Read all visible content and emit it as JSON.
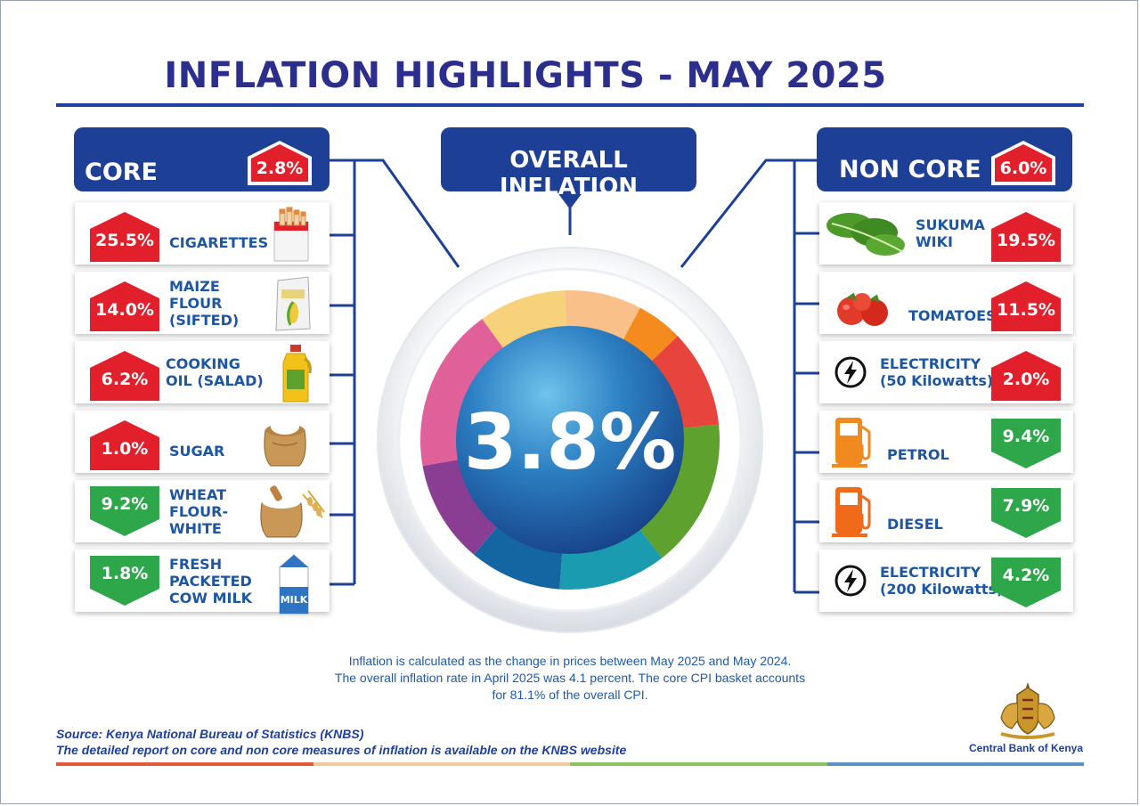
{
  "title": "INFLATION HIGHLIGHTS - MAY 2025",
  "core": {
    "label": "CORE",
    "value": "2.8%",
    "direction": "up",
    "items": [
      {
        "value": "25.5%",
        "direction": "up",
        "label": "CIGARETTES",
        "icon": "cigarettes-icon"
      },
      {
        "value": "14.0%",
        "direction": "up",
        "label": "MAIZE\nFLOUR\n(SIFTED)",
        "icon": "maize-flour-bag-icon"
      },
      {
        "value": "6.2%",
        "direction": "up",
        "label": "COOKING\nOIL (SALAD)",
        "icon": "cooking-oil-bottle-icon"
      },
      {
        "value": "1.0%",
        "direction": "up",
        "label": "SUGAR",
        "icon": "sugar-sack-icon"
      },
      {
        "value": "9.2%",
        "direction": "down",
        "label": "WHEAT\nFLOUR-\nWHITE",
        "icon": "wheat-flour-sack-icon"
      },
      {
        "value": "1.8%",
        "direction": "down",
        "label": "FRESH\nPACKETED\nCOW MILK",
        "icon": "milk-carton-icon"
      }
    ]
  },
  "overall": {
    "label": "OVERALL INFLATION",
    "value": "3.8%"
  },
  "noncore": {
    "label": "NON CORE",
    "value": "6.0%",
    "direction": "up",
    "items": [
      {
        "value": "19.5%",
        "direction": "up",
        "label": "SUKUMA\nWIKI",
        "icon": "sukuma-wiki-icon"
      },
      {
        "value": "11.5%",
        "direction": "up",
        "label": "TOMATOES",
        "icon": "tomatoes-icon"
      },
      {
        "value": "2.0%",
        "direction": "up",
        "label": "ELECTRICITY\n(50 Kilowatts)",
        "icon": "electricity-icon"
      },
      {
        "value": "9.4%",
        "direction": "down",
        "label": "PETROL",
        "icon": "petrol-pump-icon"
      },
      {
        "value": "7.9%",
        "direction": "down",
        "label": "DIESEL",
        "icon": "diesel-pump-icon"
      },
      {
        "value": "4.2%",
        "direction": "down",
        "label": "ELECTRICITY\n(200 Kilowatts)",
        "icon": "electricity-icon"
      }
    ]
  },
  "note": {
    "line1": "Inflation is calculated as the change in prices between May 2025 and May 2024.",
    "line2": "The overall inflation rate in April 2025 was 4.1 percent. The core CPI basket accounts",
    "line3": "for 81.1% of the overall CPI."
  },
  "source": {
    "line1": "Source: Kenya National Bureau of Statistics (KNBS)",
    "line2": "The detailed report on core and non core measures of inflation is available on the KNBS website"
  },
  "logo": {
    "name": "Central Bank of Kenya",
    "icon": "cbk-coat-of-arms-logo"
  },
  "colors": {
    "navy": "#1e3f96",
    "up_red": "#e2202c",
    "down_green": "#2ea64a",
    "label_blue": "#1d56a3",
    "bottom_bar": [
      "#e05a3a",
      "#f2c9a0",
      "#8cc063",
      "#5a8fc8"
    ],
    "donut": [
      "#f8d27a",
      "#f9c08a",
      "#f58a1f",
      "#e6443c",
      "#5fa12e",
      "#1a9bb0",
      "#1466a3",
      "#8a3e93",
      "#e0609a"
    ]
  }
}
